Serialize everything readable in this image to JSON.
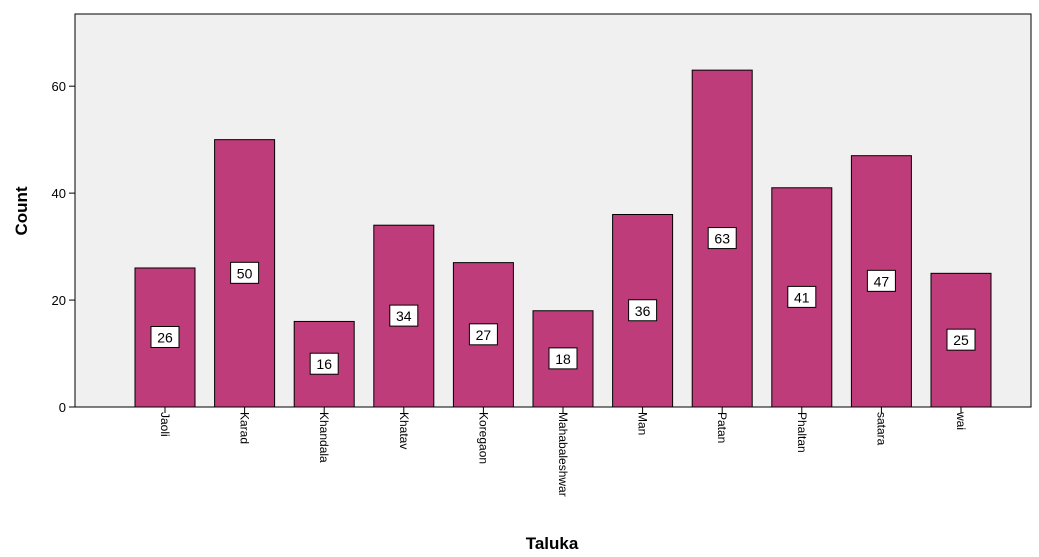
{
  "chart_data": {
    "type": "bar",
    "title": "",
    "xlabel": "Taluka",
    "ylabel": "Count",
    "categories": [
      "Jaoli",
      "Karad",
      "Khandala",
      "Khatav",
      "Koregaon",
      "Mahabaleshwar",
      "Man",
      "Patan",
      "Phaltan",
      "satara",
      "wai"
    ],
    "values": [
      26,
      50,
      16,
      34,
      27,
      18,
      36,
      63,
      41,
      47,
      25
    ],
    "data_labels": [
      "26",
      "50",
      "16",
      "34",
      "27",
      "18",
      "36",
      "63",
      "41",
      "47",
      "25"
    ],
    "yticks": [
      0,
      20,
      40,
      60
    ],
    "ytick_labels": [
      "0",
      "20",
      "40",
      "60"
    ],
    "ylim": [
      0,
      73.5
    ],
    "grid": false,
    "legend": "none",
    "colors": {
      "bar_fill": "#be3c7a",
      "bar_stroke": "#000000",
      "plot_background": "#f0f0f0",
      "page_background": "#ffffff"
    }
  }
}
